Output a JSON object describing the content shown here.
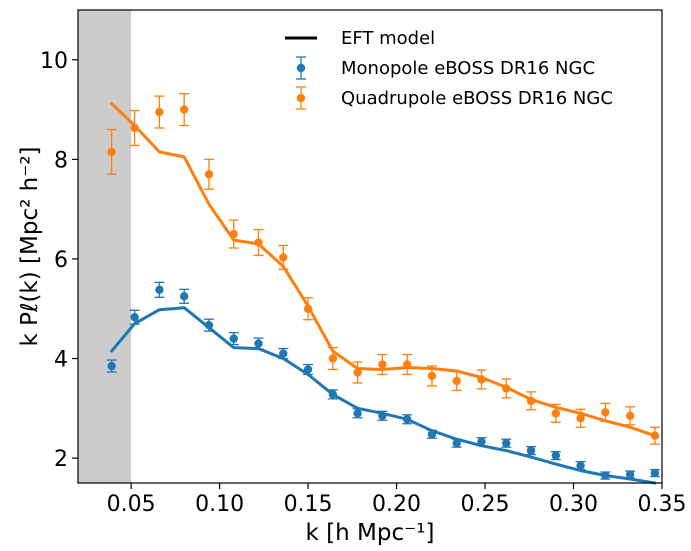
{
  "chart_data": {
    "type": "line",
    "xlim": [
      0.02,
      0.35
    ],
    "ylim": [
      1.5,
      11.0
    ],
    "xticks": [
      "0.05",
      "0.10",
      "0.15",
      "0.20",
      "0.25",
      "0.30",
      "0.35"
    ],
    "yticks": [
      "2",
      "4",
      "6",
      "8",
      "10"
    ],
    "xlabel": "k [h Mpc⁻¹]",
    "ylabel": "k Pℓ(k) [Mpc² h⁻²]",
    "grid": false,
    "legend_position": "upper-right",
    "shaded_region": {
      "x_start": 0.02,
      "x_end": 0.05,
      "color": "#cccccc"
    },
    "colors": {
      "model": "#000000",
      "monopole": "#1f77b4",
      "quadrupole": "#ff7f0e"
    },
    "x": [
      0.039,
      0.052,
      0.066,
      0.08,
      0.094,
      0.108,
      0.122,
      0.136,
      0.15,
      0.164,
      0.178,
      0.192,
      0.206,
      0.22,
      0.234,
      0.248,
      0.262,
      0.276,
      0.29,
      0.304,
      0.318,
      0.332,
      0.346
    ],
    "series": [
      {
        "name": "Monopole eBOSS DR16 NGC",
        "kind": "errorbar",
        "color": "#1f77b4",
        "y": [
          3.85,
          4.83,
          5.38,
          5.25,
          4.67,
          4.4,
          4.3,
          4.1,
          3.78,
          3.28,
          2.9,
          2.85,
          2.78,
          2.48,
          2.3,
          2.33,
          2.3,
          2.15,
          2.05,
          1.85,
          1.65,
          1.67,
          1.7
        ],
        "err": [
          0.12,
          0.14,
          0.15,
          0.14,
          0.12,
          0.12,
          0.11,
          0.1,
          0.1,
          0.09,
          0.09,
          0.09,
          0.09,
          0.08,
          0.08,
          0.08,
          0.08,
          0.08,
          0.08,
          0.08,
          0.07,
          0.07,
          0.07
        ]
      },
      {
        "name": "Quadrupole eBOSS DR16 NGC",
        "kind": "errorbar",
        "color": "#ff7f0e",
        "y": [
          8.15,
          8.63,
          8.95,
          9.0,
          7.7,
          6.5,
          6.33,
          6.03,
          5.0,
          4.0,
          3.72,
          3.88,
          3.88,
          3.65,
          3.55,
          3.58,
          3.4,
          3.15,
          2.9,
          2.8,
          2.92,
          2.85,
          2.45
        ],
        "err": [
          0.45,
          0.35,
          0.32,
          0.32,
          0.3,
          0.28,
          0.26,
          0.24,
          0.22,
          0.22,
          0.21,
          0.2,
          0.2,
          0.2,
          0.19,
          0.19,
          0.19,
          0.18,
          0.18,
          0.18,
          0.18,
          0.18,
          0.17
        ]
      },
      {
        "name": "EFT model",
        "kind": "line",
        "color": "#1f77b4",
        "y": [
          4.15,
          4.7,
          4.98,
          5.02,
          4.62,
          4.22,
          4.2,
          4.0,
          3.68,
          3.28,
          3.0,
          2.9,
          2.78,
          2.55,
          2.38,
          2.25,
          2.15,
          2.02,
          1.88,
          1.75,
          1.65,
          1.58,
          1.5
        ]
      },
      {
        "name": "EFT model",
        "kind": "line",
        "color": "#ff7f0e",
        "y": [
          9.12,
          8.68,
          8.15,
          8.05,
          7.1,
          6.38,
          6.3,
          5.85,
          5.05,
          4.15,
          3.8,
          3.78,
          3.82,
          3.8,
          3.75,
          3.62,
          3.42,
          3.18,
          3.02,
          2.9,
          2.75,
          2.62,
          2.45
        ]
      }
    ],
    "legend": [
      {
        "label": "EFT model",
        "style": "line",
        "color": "#000000"
      },
      {
        "label": "Monopole eBOSS DR16 NGC",
        "style": "errorbar",
        "color": "#1f77b4"
      },
      {
        "label": "Quadrupole eBOSS DR16 NGC",
        "style": "errorbar",
        "color": "#ff7f0e"
      }
    ]
  }
}
